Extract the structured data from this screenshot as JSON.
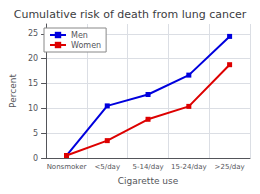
{
  "chart_data": {
    "type": "line",
    "title": "Cumulative risk of death from lung cancer",
    "xlabel": "Cigarette use",
    "ylabel": "Percent",
    "categories": [
      "Nonsmoker",
      "<5/day",
      "5-14/day",
      "15-24/day",
      ">25/day"
    ],
    "series": [
      {
        "name": "Men",
        "color": "#0000dd",
        "values": [
          0.5,
          10.5,
          12.8,
          16.7,
          24.5
        ],
        "marker": "square"
      },
      {
        "name": "Women",
        "color": "#dd0000",
        "values": [
          0.5,
          3.5,
          7.8,
          10.4,
          18.8
        ],
        "marker": "square"
      }
    ],
    "ylim": [
      0,
      27
    ],
    "yticks": [
      0,
      5,
      10,
      15,
      20,
      25
    ],
    "grid": true,
    "legend": "upper left"
  }
}
